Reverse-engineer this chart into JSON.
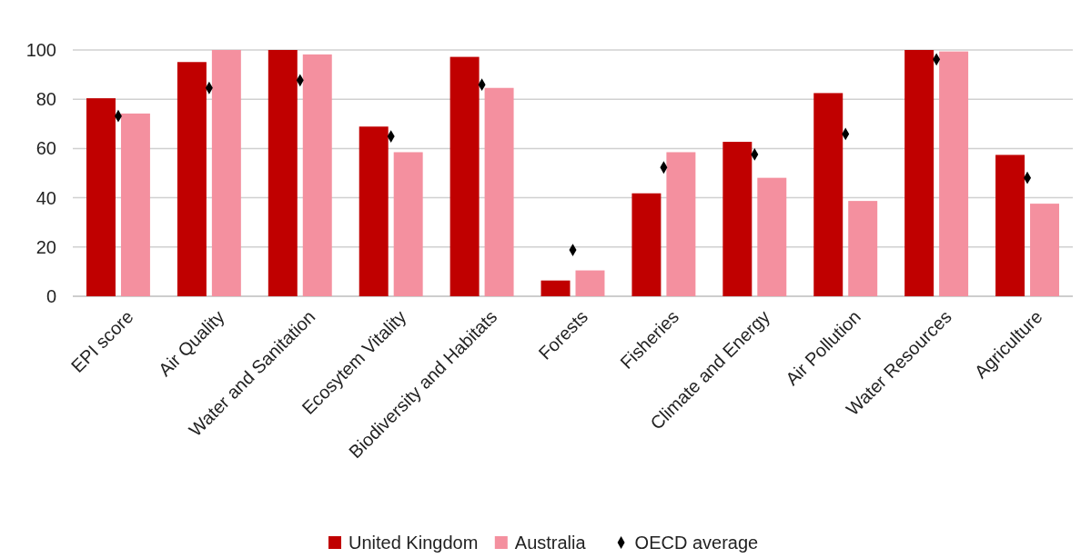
{
  "chart_data": {
    "type": "bar",
    "categories": [
      "EPI score",
      "Air Quality",
      "Water and Sanitation",
      "Ecosytem Vitality",
      "Biodiversity and Habitats",
      "Forests",
      "Fisheries",
      "Climate and Energy",
      "Air Pollution",
      "Water Resources",
      "Agriculture"
    ],
    "series": [
      {
        "name": "United Kingdom",
        "color": "#c00000",
        "values": [
          80.4,
          95.1,
          100,
          68.9,
          97.2,
          6.4,
          41.8,
          62.7,
          82.5,
          100,
          57.4
        ]
      },
      {
        "name": "Australia",
        "color": "#f4909f",
        "values": [
          74.2,
          100,
          98.2,
          58.5,
          84.6,
          10.5,
          58.5,
          48.1,
          38.7,
          99.4,
          37.6
        ]
      },
      {
        "name": "OECD average",
        "type": "scatter",
        "marker": "diamond",
        "color": "#000000",
        "x": [
          "EPI score",
          "Air Quality",
          "Water and Sanitation",
          "Ecosytem Vitality",
          "Biodiversity and Habitats",
          "Forests",
          "Fisheries",
          "Climate and Energy",
          "Air Pollution",
          "Water Resources",
          "Agriculture"
        ],
        "values": [
          73.2,
          84.6,
          87.7,
          64.9,
          85.9,
          18.8,
          52.3,
          57.6,
          65.9,
          96.2,
          48.1
        ]
      }
    ],
    "ylim": [
      0,
      100
    ],
    "yticks": [
      0,
      20,
      40,
      60,
      80,
      100
    ],
    "grid": "y",
    "legend": "bottom"
  }
}
